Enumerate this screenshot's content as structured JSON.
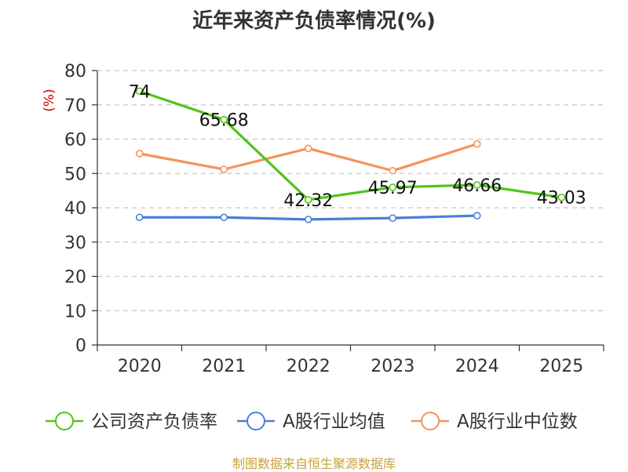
{
  "title": "近年来资产负债率情况(%)",
  "source": "制图数据来自恒生聚源数据库",
  "chart_data": {
    "type": "line",
    "title": "近年来资产负债率情况(%)",
    "ylabel": "(%)",
    "xlabel": "",
    "categories": [
      "2020",
      "2021",
      "2022",
      "2023",
      "2024",
      "2025"
    ],
    "ylim": [
      0,
      80
    ],
    "yticks": [
      0,
      10,
      20,
      30,
      40,
      50,
      60,
      70,
      80
    ],
    "grid": "horizontal-dashed",
    "legend_position": "bottom",
    "series": [
      {
        "name": "公司资产负债率",
        "color": "#52c41a",
        "values": [
          74,
          65.68,
          42.32,
          45.97,
          46.66,
          43.03
        ],
        "labels": [
          "74",
          "65.68",
          "42.32",
          "45.97",
          "46.66",
          "43.03"
        ]
      },
      {
        "name": "A股行业均值",
        "color": "#4a7fd8",
        "values": [
          37.2,
          37.2,
          36.6,
          37.0,
          37.7,
          null
        ]
      },
      {
        "name": "A股行业中位数",
        "color": "#f5925a",
        "values": [
          55.8,
          51.2,
          57.3,
          50.8,
          58.6,
          null
        ]
      }
    ]
  }
}
